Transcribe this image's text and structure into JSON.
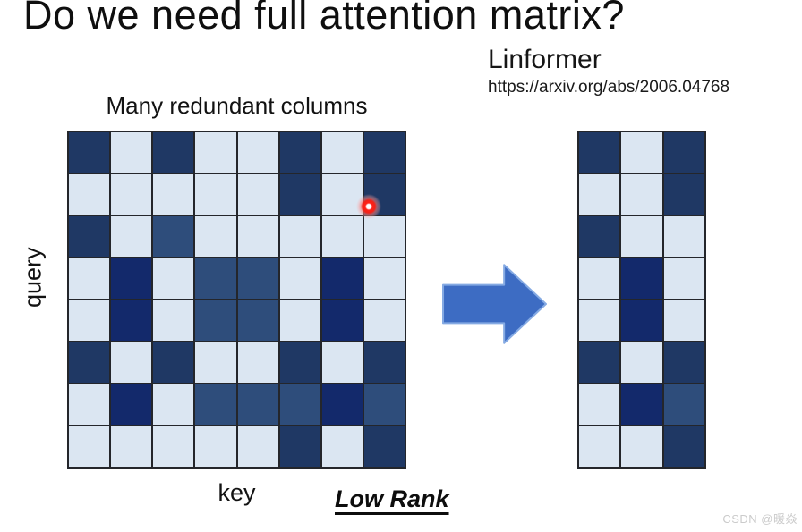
{
  "title": "Do we need full attention matrix?",
  "annotation": {
    "method_name": "Linformer",
    "url": "https://arxiv.org/abs/2006.04768"
  },
  "full_matrix": {
    "caption_top": "Many redundant columns",
    "row_axis_label": "query",
    "col_axis_label": "key",
    "rows": 8,
    "cols": 8,
    "cell_shade_codes": "0=light 1=dark 2=navy 3=medium",
    "cells": [
      [
        1,
        0,
        1,
        0,
        0,
        1,
        0,
        1
      ],
      [
        0,
        0,
        0,
        0,
        0,
        1,
        0,
        1
      ],
      [
        1,
        0,
        3,
        0,
        0,
        0,
        0,
        0
      ],
      [
        0,
        2,
        0,
        3,
        3,
        0,
        2,
        0
      ],
      [
        0,
        2,
        0,
        3,
        3,
        0,
        2,
        0
      ],
      [
        1,
        0,
        1,
        0,
        0,
        1,
        0,
        1
      ],
      [
        0,
        2,
        0,
        3,
        3,
        3,
        2,
        3
      ],
      [
        0,
        0,
        0,
        0,
        0,
        1,
        0,
        1
      ]
    ]
  },
  "reduced_matrix": {
    "rows": 8,
    "cols": 3,
    "cells": [
      [
        1,
        0,
        1
      ],
      [
        0,
        0,
        1
      ],
      [
        1,
        0,
        0
      ],
      [
        0,
        2,
        0
      ],
      [
        0,
        2,
        0
      ],
      [
        1,
        0,
        1
      ],
      [
        0,
        2,
        3
      ],
      [
        0,
        0,
        1
      ]
    ]
  },
  "arrow": {
    "direction": "right"
  },
  "footer_label": "Low Rank",
  "watermark": "CSDN @暖焱",
  "colors": {
    "cell_light": "#dbe6f2",
    "cell_dark": "#1f3864",
    "cell_navy": "#13296b",
    "cell_medium": "#2e4d7b",
    "grid_line": "#24262b",
    "arrow_fill": "#3d6cc3",
    "arrow_edge": "#85aae3",
    "laser_red": "#ff2318"
  }
}
